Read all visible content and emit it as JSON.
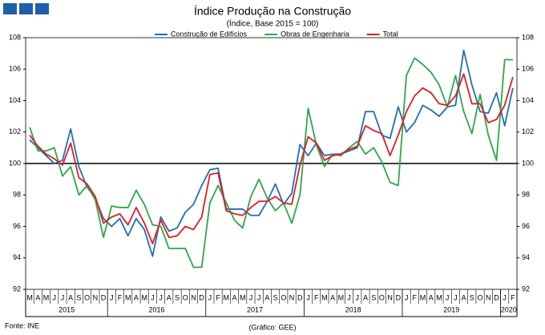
{
  "chart_data": {
    "type": "line",
    "title": "Índice Produção na Construção",
    "subtitle": "(Índice, Base 2015 = 100)",
    "source": "Fonte: INE",
    "credit": "(Gráfico: GEE)",
    "categories": [
      "M",
      "A",
      "M",
      "J",
      "J",
      "A",
      "S",
      "O",
      "N",
      "D",
      "J",
      "F",
      "M",
      "A",
      "M",
      "J",
      "J",
      "A",
      "S",
      "O",
      "N",
      "D",
      "J",
      "F",
      "M",
      "A",
      "M",
      "J",
      "J",
      "A",
      "S",
      "O",
      "N",
      "D",
      "J",
      "F",
      "M",
      "A",
      "M",
      "J",
      "J",
      "A",
      "S",
      "O",
      "N",
      "D",
      "J",
      "F",
      "M",
      "A",
      "M",
      "J",
      "J",
      "A",
      "S",
      "O",
      "N",
      "D",
      "J",
      "F"
    ],
    "years": [
      "2015",
      "2016",
      "2017",
      "2018",
      "2019",
      "2020"
    ],
    "series": [
      {
        "name": "Construção de Edifícios",
        "color": "#1f6fb5",
        "values": [
          101.5,
          101.0,
          100.5,
          100.0,
          100.2,
          102.2,
          99.8,
          98.5,
          97.8,
          96.5,
          96.0,
          96.5,
          95.4,
          96.5,
          95.8,
          94.1,
          96.6,
          95.7,
          95.9,
          96.9,
          97.4,
          98.6,
          99.6,
          99.7,
          97.1,
          97.1,
          97.1,
          96.7,
          96.7,
          97.6,
          98.7,
          97.4,
          98.1,
          101.2,
          100.5,
          101.3,
          100.5,
          100.6,
          100.6,
          100.8,
          101.0,
          103.3,
          103.3,
          101.8,
          101.6,
          103.6,
          102.0,
          102.6,
          103.7,
          103.4,
          103.0,
          103.6,
          103.7,
          107.2,
          105.0,
          103.3,
          103.2,
          104.5,
          102.4,
          104.8
        ]
      },
      {
        "name": "Obras de Engenharia",
        "color": "#2ca84a",
        "values": [
          102.3,
          100.8,
          100.8,
          101.0,
          99.2,
          99.8,
          98.0,
          98.6,
          97.7,
          95.3,
          97.3,
          97.2,
          97.2,
          98.3,
          97.4,
          96.1,
          96.0,
          94.6,
          94.6,
          94.6,
          93.4,
          93.4,
          97.5,
          98.6,
          97.5,
          96.4,
          95.9,
          97.9,
          99.0,
          97.8,
          97.0,
          97.5,
          96.2,
          98.0,
          103.5,
          101.2,
          99.8,
          100.6,
          100.5,
          101.0,
          101.4,
          100.6,
          101.0,
          100.1,
          98.8,
          98.6,
          105.6,
          106.7,
          106.3,
          105.8,
          105.0,
          103.6,
          105.6,
          103.3,
          101.9,
          104.4,
          101.8,
          100.2,
          106.6,
          106.6
        ]
      },
      {
        "name": "Total",
        "color": "#e31b23",
        "values": [
          101.8,
          101.1,
          100.6,
          100.3,
          99.9,
          101.3,
          99.1,
          98.7,
          97.9,
          96.2,
          96.6,
          96.8,
          96.1,
          97.2,
          96.2,
          94.9,
          96.4,
          95.3,
          95.4,
          96.0,
          95.8,
          96.6,
          99.3,
          99.4,
          97.0,
          96.8,
          96.7,
          97.2,
          97.6,
          97.6,
          97.9,
          97.5,
          97.4,
          99.9,
          101.7,
          101.3,
          100.2,
          100.5,
          100.6,
          100.9,
          101.1,
          102.4,
          102.1,
          101.9,
          100.5,
          101.8,
          103.3,
          104.3,
          104.8,
          104.5,
          103.8,
          103.7,
          104.3,
          105.7,
          103.8,
          103.8,
          102.6,
          102.8,
          103.7,
          105.5
        ]
      }
    ],
    "ylim": [
      92,
      108
    ],
    "yticks": [
      92,
      94,
      96,
      98,
      100,
      102,
      104,
      106,
      108
    ],
    "y2lim": [
      92,
      108
    ],
    "y2ticks": [
      92,
      94,
      96,
      98,
      100,
      102,
      104,
      106,
      108
    ],
    "reference_line": 100,
    "legend": "top"
  }
}
